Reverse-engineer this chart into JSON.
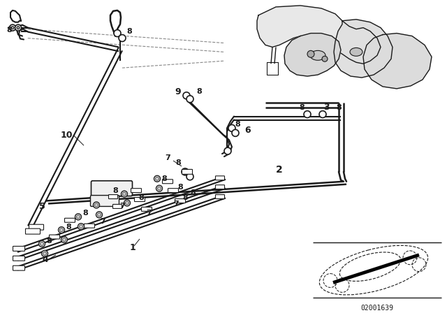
{
  "bg_color": "#ffffff",
  "line_color": "#1a1a1a",
  "part_number": "02001639",
  "fig_width": 6.4,
  "fig_height": 4.48
}
